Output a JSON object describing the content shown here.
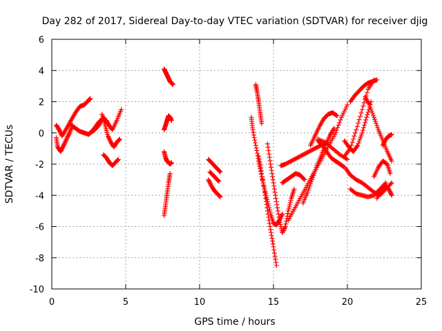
{
  "chart_data": {
    "type": "scatter",
    "title": "Day 282 of 2017, Sidereal Day-to-day VTEC variation (SDTVAR) for receiver djig",
    "xlabel": "GPS time / hours",
    "ylabel": "SDTVAR / TECUs",
    "xlim": [
      0,
      25
    ],
    "ylim": [
      -10,
      6
    ],
    "xticks": [
      0,
      5,
      10,
      15,
      20,
      25
    ],
    "yticks": [
      -10,
      -8,
      -6,
      -4,
      -2,
      0,
      2,
      4,
      6
    ],
    "grid": true,
    "marker": "plus",
    "color": "#ff0000",
    "series": [
      {
        "x": [
          0.3,
          0.5,
          0.7,
          1.0,
          1.3,
          1.6,
          1.9,
          2.2,
          2.5,
          2.6
        ],
        "y": [
          0.5,
          0.2,
          -0.2,
          0.3,
          0.8,
          1.3,
          1.7,
          1.8,
          2.1,
          2.2
        ]
      },
      {
        "x": [
          0.3,
          0.4,
          0.6,
          0.8,
          1.0,
          1.2,
          1.4
        ],
        "y": [
          -0.3,
          -0.9,
          -1.2,
          -0.8,
          -0.4,
          0.0,
          0.5
        ]
      },
      {
        "x": [
          1.3,
          1.6,
          1.9,
          2.2,
          2.5,
          2.8,
          3.1,
          3.4,
          3.7,
          3.9
        ],
        "y": [
          0.5,
          0.3,
          0.1,
          0.0,
          -0.1,
          0.2,
          0.6,
          0.9,
          0.8,
          0.4
        ]
      },
      {
        "x": [
          2.6,
          2.9,
          3.2,
          3.5,
          3.8,
          4.1,
          4.4,
          4.7
        ],
        "y": [
          0.0,
          0.2,
          0.5,
          1.0,
          0.6,
          0.2,
          0.8,
          1.5
        ]
      },
      {
        "x": [
          3.4,
          3.6,
          3.8,
          4.0,
          4.2,
          4.4,
          4.6
        ],
        "y": [
          1.2,
          0.5,
          -0.2,
          -0.6,
          -0.9,
          -0.6,
          -0.4
        ]
      },
      {
        "x": [
          3.5,
          3.7,
          3.9,
          4.1,
          4.3,
          4.5
        ],
        "y": [
          -1.4,
          -1.6,
          -1.9,
          -2.1,
          -1.9,
          -1.7
        ]
      },
      {
        "x": [
          7.6,
          7.7,
          7.8,
          7.9,
          8.0,
          8.1,
          8.2
        ],
        "y": [
          4.1,
          3.9,
          3.7,
          3.5,
          3.3,
          3.2,
          3.1
        ]
      },
      {
        "x": [
          7.6,
          7.7,
          7.8,
          7.9,
          8.0,
          8.1
        ],
        "y": [
          0.2,
          0.5,
          0.8,
          1.1,
          1.0,
          0.8
        ]
      },
      {
        "x": [
          7.6,
          7.7,
          7.8,
          7.9,
          8.0,
          8.1
        ],
        "y": [
          -1.2,
          -1.6,
          -1.8,
          -1.9,
          -2.0,
          -1.9
        ]
      },
      {
        "x": [
          7.6,
          7.7,
          7.8,
          7.9,
          8.0
        ],
        "y": [
          -5.3,
          -4.6,
          -3.9,
          -3.2,
          -2.6
        ]
      },
      {
        "x": [
          10.6,
          10.8,
          11.0,
          11.2,
          11.4
        ],
        "y": [
          -1.7,
          -1.9,
          -2.1,
          -2.3,
          -2.5
        ]
      },
      {
        "x": [
          10.6,
          10.8,
          11.0,
          11.2,
          11.4
        ],
        "y": [
          -3.0,
          -3.4,
          -3.7,
          -3.9,
          -4.1
        ]
      },
      {
        "x": [
          10.7,
          10.9,
          11.1,
          11.3
        ],
        "y": [
          -2.5,
          -2.7,
          -2.9,
          -3.1
        ]
      },
      {
        "x": [
          13.5,
          13.6,
          13.8,
          14.0,
          14.2,
          14.4,
          14.6,
          14.8,
          15.0,
          15.2,
          15.4,
          15.6
        ],
        "y": [
          1.0,
          0.2,
          -0.8,
          -1.8,
          -2.8,
          -3.6,
          -4.4,
          -5.2,
          -5.8,
          -5.9,
          -5.6,
          -5.2
        ]
      },
      {
        "x": [
          13.8,
          13.9,
          14.0,
          14.1,
          14.2
        ],
        "y": [
          3.1,
          2.6,
          2.0,
          1.3,
          0.6
        ]
      },
      {
        "x": [
          14.0,
          14.2,
          14.4,
          14.6,
          14.8,
          15.0,
          15.2
        ],
        "y": [
          -1.5,
          -2.6,
          -3.8,
          -5.0,
          -6.2,
          -7.3,
          -8.5
        ]
      },
      {
        "x": [
          14.6,
          14.8,
          15.0,
          15.2,
          15.4,
          15.6,
          15.8,
          16.0,
          16.2,
          16.4
        ],
        "y": [
          -0.7,
          -2.0,
          -3.2,
          -4.4,
          -5.6,
          -6.4,
          -6.0,
          -5.0,
          -4.2,
          -3.6
        ]
      },
      {
        "x": [
          15.5,
          15.8,
          16.2,
          16.6,
          17.0,
          17.4,
          17.8,
          18.2,
          18.6
        ],
        "y": [
          -2.1,
          -2.0,
          -1.8,
          -1.6,
          -1.4,
          -1.2,
          -1.0,
          -0.8,
          -0.6
        ]
      },
      {
        "x": [
          15.6,
          15.9,
          16.2,
          16.5,
          16.8,
          17.1
        ],
        "y": [
          -3.2,
          -3.0,
          -2.8,
          -2.6,
          -2.7,
          -3.0
        ]
      },
      {
        "x": [
          16.0,
          16.4,
          16.8,
          17.2,
          17.6,
          18.0,
          18.4,
          18.8,
          19.2,
          19.6,
          20.0
        ],
        "y": [
          -5.6,
          -4.9,
          -4.2,
          -3.5,
          -2.8,
          -2.1,
          -1.4,
          -0.7,
          0.0,
          1.0,
          1.8
        ]
      },
      {
        "x": [
          17.0,
          17.3,
          17.6,
          17.9,
          18.2,
          18.5,
          18.8,
          19.1
        ],
        "y": [
          -4.5,
          -3.8,
          -3.0,
          -2.2,
          -1.5,
          -0.8,
          -0.2,
          0.3
        ]
      },
      {
        "x": [
          17.5,
          17.8,
          18.1,
          18.4,
          18.7,
          19.0,
          19.3
        ],
        "y": [
          -0.8,
          -0.2,
          0.4,
          0.9,
          1.2,
          1.3,
          1.1
        ]
      },
      {
        "x": [
          18.0,
          18.3,
          18.6,
          18.9,
          19.2,
          19.5,
          19.8
        ],
        "y": [
          -0.5,
          -0.8,
          -1.2,
          -1.6,
          -1.8,
          -2.0,
          -2.2
        ]
      },
      {
        "x": [
          19.8,
          20.1,
          20.4,
          20.7,
          21.0,
          21.3,
          21.6
        ],
        "y": [
          -0.5,
          -0.9,
          -1.2,
          -0.8,
          0.0,
          1.0,
          2.0
        ]
      },
      {
        "x": [
          19.8,
          20.2,
          20.6,
          21.0,
          21.4,
          21.8
        ],
        "y": [
          -1.5,
          -1.0,
          0.2,
          1.5,
          2.8,
          3.4
        ]
      },
      {
        "x": [
          20.2,
          20.5,
          20.8,
          21.1,
          21.4,
          21.7,
          22.0
        ],
        "y": [
          2.0,
          2.4,
          2.7,
          3.0,
          3.2,
          3.3,
          3.4
        ]
      },
      {
        "x": [
          19.9,
          20.2,
          20.6,
          21.0,
          21.4,
          21.8,
          22.2,
          22.6,
          23.0
        ],
        "y": [
          -2.3,
          -2.7,
          -3.0,
          -3.2,
          -3.5,
          -3.8,
          -4.0,
          -3.6,
          -3.2
        ]
      },
      {
        "x": [
          20.2,
          20.6,
          21.0,
          21.4,
          21.8,
          22.2,
          22.6
        ],
        "y": [
          -3.6,
          -3.9,
          -4.0,
          -4.1,
          -4.0,
          -3.6,
          -3.2
        ]
      },
      {
        "x": [
          21.2,
          21.5,
          21.8,
          22.1,
          22.4,
          22.7,
          23.0
        ],
        "y": [
          2.3,
          1.8,
          1.0,
          0.2,
          -0.5,
          -1.2,
          -1.8
        ]
      },
      {
        "x": [
          21.8,
          22.1,
          22.4,
          22.7,
          22.9
        ],
        "y": [
          -2.8,
          -2.2,
          -1.8,
          -2.0,
          -2.6
        ]
      },
      {
        "x": [
          22.0,
          22.3,
          22.6,
          22.8,
          23.0
        ],
        "y": [
          -4.2,
          -3.6,
          -3.4,
          -3.6,
          -4.0
        ]
      },
      {
        "x": [
          22.4,
          22.6,
          22.8,
          23.0
        ],
        "y": [
          -0.8,
          -0.4,
          -0.2,
          -0.1
        ]
      },
      {
        "x": [
          18.0,
          18.5,
          19.0,
          19.5,
          20.0
        ],
        "y": [
          -0.4,
          -0.6,
          -1.0,
          -1.4,
          -1.7
        ]
      }
    ]
  }
}
